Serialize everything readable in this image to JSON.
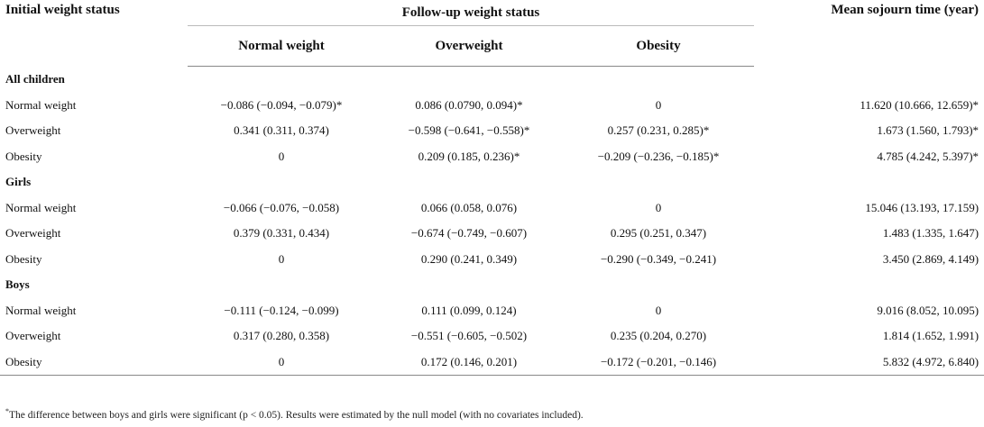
{
  "header": {
    "initial": "Initial weight status",
    "followup": "Follow-up weight status",
    "sojourn": "Mean sojourn time (year)",
    "sub_normal": "Normal weight",
    "sub_overweight": "Overweight",
    "sub_obesity": "Obesity"
  },
  "groups": [
    {
      "title": "All children",
      "rows": [
        {
          "label": "Normal weight",
          "normal": "−0.086 (−0.094, −0.079)*",
          "overweight": "0.086 (0.0790, 0.094)*",
          "obesity": "0",
          "sojourn": "11.620 (10.666, 12.659)*"
        },
        {
          "label": "Overweight",
          "normal": "0.341 (0.311, 0.374)",
          "overweight": "−0.598 (−0.641, −0.558)*",
          "obesity": "0.257 (0.231, 0.285)*",
          "sojourn": "1.673 (1.560, 1.793)*"
        },
        {
          "label": "Obesity",
          "normal": "0",
          "overweight": "0.209 (0.185, 0.236)*",
          "obesity": "−0.209 (−0.236, −0.185)*",
          "sojourn": "4.785 (4.242, 5.397)*"
        }
      ]
    },
    {
      "title": "Girls",
      "rows": [
        {
          "label": "Normal weight",
          "normal": "−0.066 (−0.076, −0.058)",
          "overweight": "0.066 (0.058, 0.076)",
          "obesity": "0",
          "sojourn": "15.046 (13.193, 17.159)"
        },
        {
          "label": "Overweight",
          "normal": "0.379 (0.331, 0.434)",
          "overweight": "−0.674 (−0.749, −0.607)",
          "obesity": "0.295 (0.251, 0.347)",
          "sojourn": "1.483 (1.335, 1.647)"
        },
        {
          "label": "Obesity",
          "normal": "0",
          "overweight": "0.290 (0.241, 0.349)",
          "obesity": "−0.290 (−0.349, −0.241)",
          "sojourn": "3.450 (2.869, 4.149)"
        }
      ]
    },
    {
      "title": "Boys",
      "rows": [
        {
          "label": "Normal weight",
          "normal": "−0.111 (−0.124, −0.099)",
          "overweight": "0.111 (0.099, 0.124)",
          "obesity": "0",
          "sojourn": "9.016 (8.052, 10.095)"
        },
        {
          "label": "Overweight",
          "normal": "0.317 (0.280, 0.358)",
          "overweight": "−0.551 (−0.605, −0.502)",
          "obesity": "0.235 (0.204, 0.270)",
          "sojourn": "1.814 (1.652, 1.991)"
        },
        {
          "label": "Obesity",
          "normal": "0",
          "overweight": "0.172 (0.146, 0.201)",
          "obesity": "−0.172 (−0.201, −0.146)",
          "sojourn": "5.832 (4.972, 6.840)"
        }
      ]
    }
  ],
  "footnote": {
    "marker": "*",
    "text": "The difference between boys and girls were significant (p < 0.05). Results were estimated by the null model (with no covariates included)."
  }
}
